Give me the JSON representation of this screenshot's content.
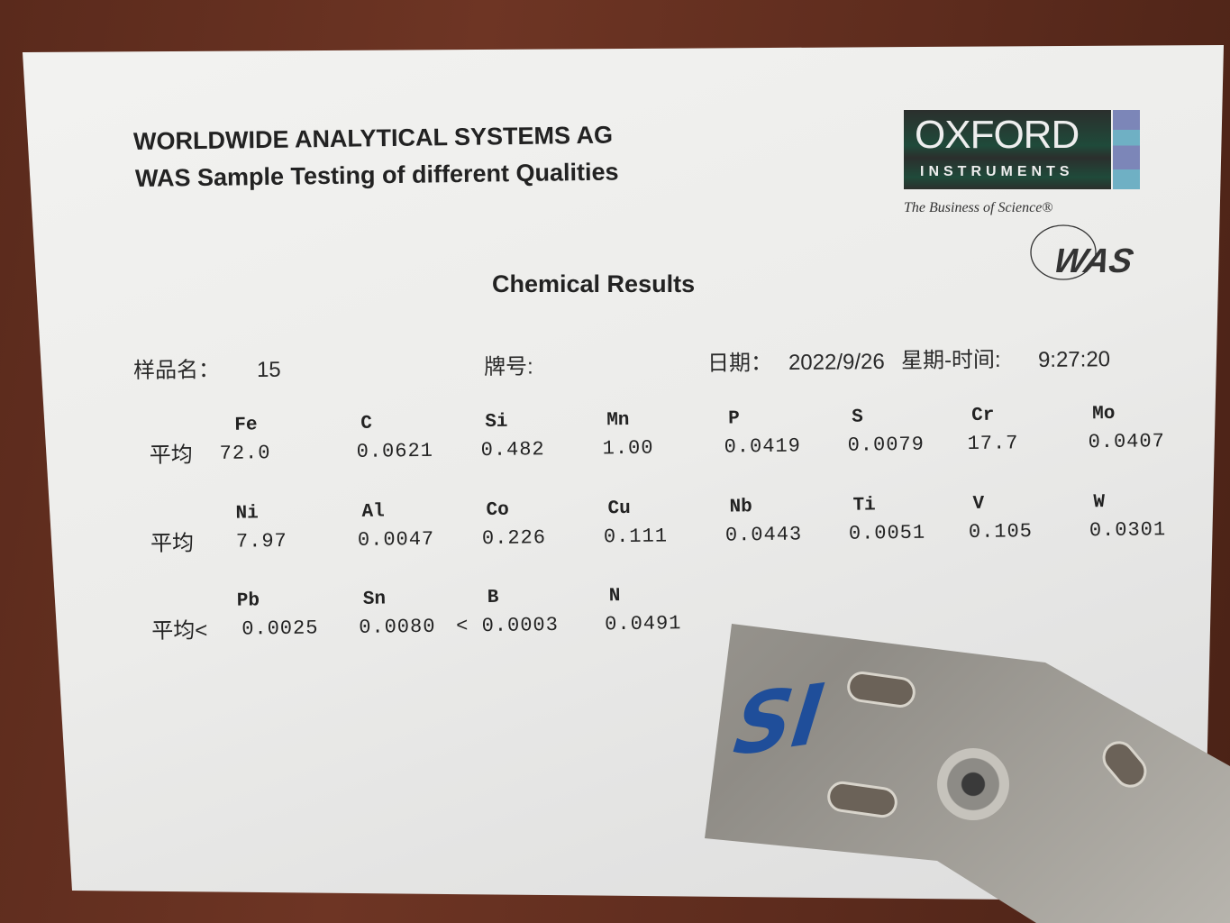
{
  "header": {
    "company": "WORLDWIDE ANALYTICAL SYSTEMS AG",
    "subtitle": "WAS Sample Testing of different Qualities"
  },
  "logo": {
    "brand": "OXFORD",
    "brand_sub": "INSTRUMENTS",
    "tagline": "The Business of Science®",
    "secondary": "WAS"
  },
  "title": "Chemical Results",
  "meta": {
    "sample_label": "样品名：",
    "sample_value": "15",
    "grade_label": "牌号:",
    "date_label": "日期：",
    "date_value": "2022/9/26",
    "weekday_time_label": "星期-时间:",
    "time_value": "9:27:20"
  },
  "results": [
    {
      "prefix": "平均",
      "cells": [
        {
          "element": "Fe",
          "value": "72.0"
        },
        {
          "element": "C",
          "value": "0.0621"
        },
        {
          "element": "Si",
          "value": "0.482"
        },
        {
          "element": "Mn",
          "value": "1.00"
        },
        {
          "element": "P",
          "value": "0.0419"
        },
        {
          "element": "S",
          "value": "0.0079"
        },
        {
          "element": "Cr",
          "value": "17.7"
        },
        {
          "element": "Mo",
          "value": "0.0407"
        }
      ]
    },
    {
      "prefix": "平均",
      "cells": [
        {
          "element": "Ni",
          "value": "7.97"
        },
        {
          "element": "Al",
          "value": "0.0047"
        },
        {
          "element": "Co",
          "value": "0.226"
        },
        {
          "element": "Cu",
          "value": "0.111"
        },
        {
          "element": "Nb",
          "value": "0.0443"
        },
        {
          "element": "Ti",
          "value": "0.0051"
        },
        {
          "element": "V",
          "value": "0.105"
        },
        {
          "element": "W",
          "value": "0.0301"
        }
      ]
    },
    {
      "prefix": "平均<",
      "cells": [
        {
          "element": "Pb",
          "value": "0.0025"
        },
        {
          "element": "Sn",
          "value": "0.0080"
        },
        {
          "element": "B",
          "value": "< 0.0003"
        },
        {
          "element": "N",
          "value": "0.0491"
        }
      ]
    }
  ],
  "handwriting": "SI",
  "colors": {
    "oxford_green": "#1f4a3a",
    "ink_blue": "#1f4e9a",
    "wood": "#6e3524"
  }
}
